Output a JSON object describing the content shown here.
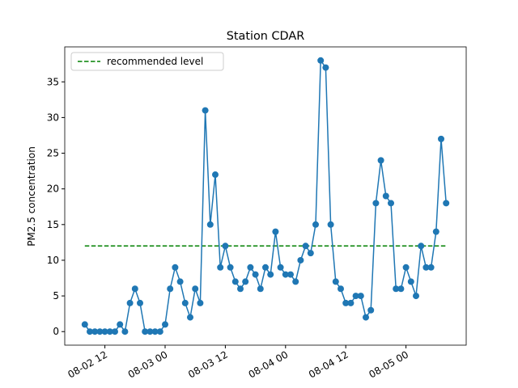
{
  "chart_data": {
    "type": "line",
    "title": "Station CDAR",
    "ylabel": "PM2.5 concentration",
    "x": [
      "08-02 08",
      "08-02 09",
      "08-02 10",
      "08-02 11",
      "08-02 12",
      "08-02 13",
      "08-02 14",
      "08-02 15",
      "08-02 16",
      "08-02 17",
      "08-02 18",
      "08-02 19",
      "08-02 20",
      "08-02 21",
      "08-02 22",
      "08-02 23",
      "08-03 00",
      "08-03 01",
      "08-03 02",
      "08-03 03",
      "08-03 04",
      "08-03 05",
      "08-03 06",
      "08-03 07",
      "08-03 08",
      "08-03 09",
      "08-03 10",
      "08-03 11",
      "08-03 12",
      "08-03 13",
      "08-03 14",
      "08-03 15",
      "08-03 16",
      "08-03 17",
      "08-03 18",
      "08-03 19",
      "08-03 20",
      "08-03 21",
      "08-03 22",
      "08-03 23",
      "08-04 00",
      "08-04 01",
      "08-04 02",
      "08-04 03",
      "08-04 04",
      "08-04 05",
      "08-04 06",
      "08-04 07",
      "08-04 08",
      "08-04 09",
      "08-04 10",
      "08-04 11",
      "08-04 12",
      "08-04 13",
      "08-04 14",
      "08-04 15",
      "08-04 16",
      "08-04 17",
      "08-04 18",
      "08-04 19",
      "08-04 20",
      "08-04 21",
      "08-04 22",
      "08-04 23",
      "08-05 00",
      "08-05 01",
      "08-05 02",
      "08-05 03",
      "08-05 04",
      "08-05 05",
      "08-05 06",
      "08-05 07",
      "08-05 08"
    ],
    "series": [
      {
        "color": "#1f77b4",
        "values": [
          1,
          0,
          0,
          0,
          0,
          0,
          0,
          1,
          0,
          4,
          6,
          4,
          0,
          0,
          0,
          0,
          1,
          6,
          9,
          7,
          4,
          2,
          6,
          4,
          31,
          15,
          22,
          9,
          12,
          9,
          7,
          6,
          7,
          9,
          8,
          6,
          9,
          8,
          14,
          9,
          8,
          8,
          7,
          10,
          12,
          11,
          15,
          38,
          37,
          15,
          7,
          6,
          4,
          4,
          5,
          5,
          2,
          3,
          18,
          24,
          19,
          18,
          6,
          6,
          9,
          7,
          5,
          12,
          9,
          9,
          14,
          27,
          18
        ]
      }
    ],
    "hline": {
      "name": "recommended level",
      "value": 12,
      "color": "#008000",
      "from": "08-02 08",
      "to": "08-05 08"
    },
    "xlim": [
      "08-02 04",
      "08-05 12"
    ],
    "xticks": [
      "08-02 12",
      "08-03 00",
      "08-03 12",
      "08-04 00",
      "08-04 12",
      "08-05 00"
    ],
    "ylim": [
      -1.9,
      39.9
    ],
    "yticks": [
      0,
      5,
      10,
      15,
      20,
      25,
      30,
      35
    ],
    "legend": "upper left"
  }
}
